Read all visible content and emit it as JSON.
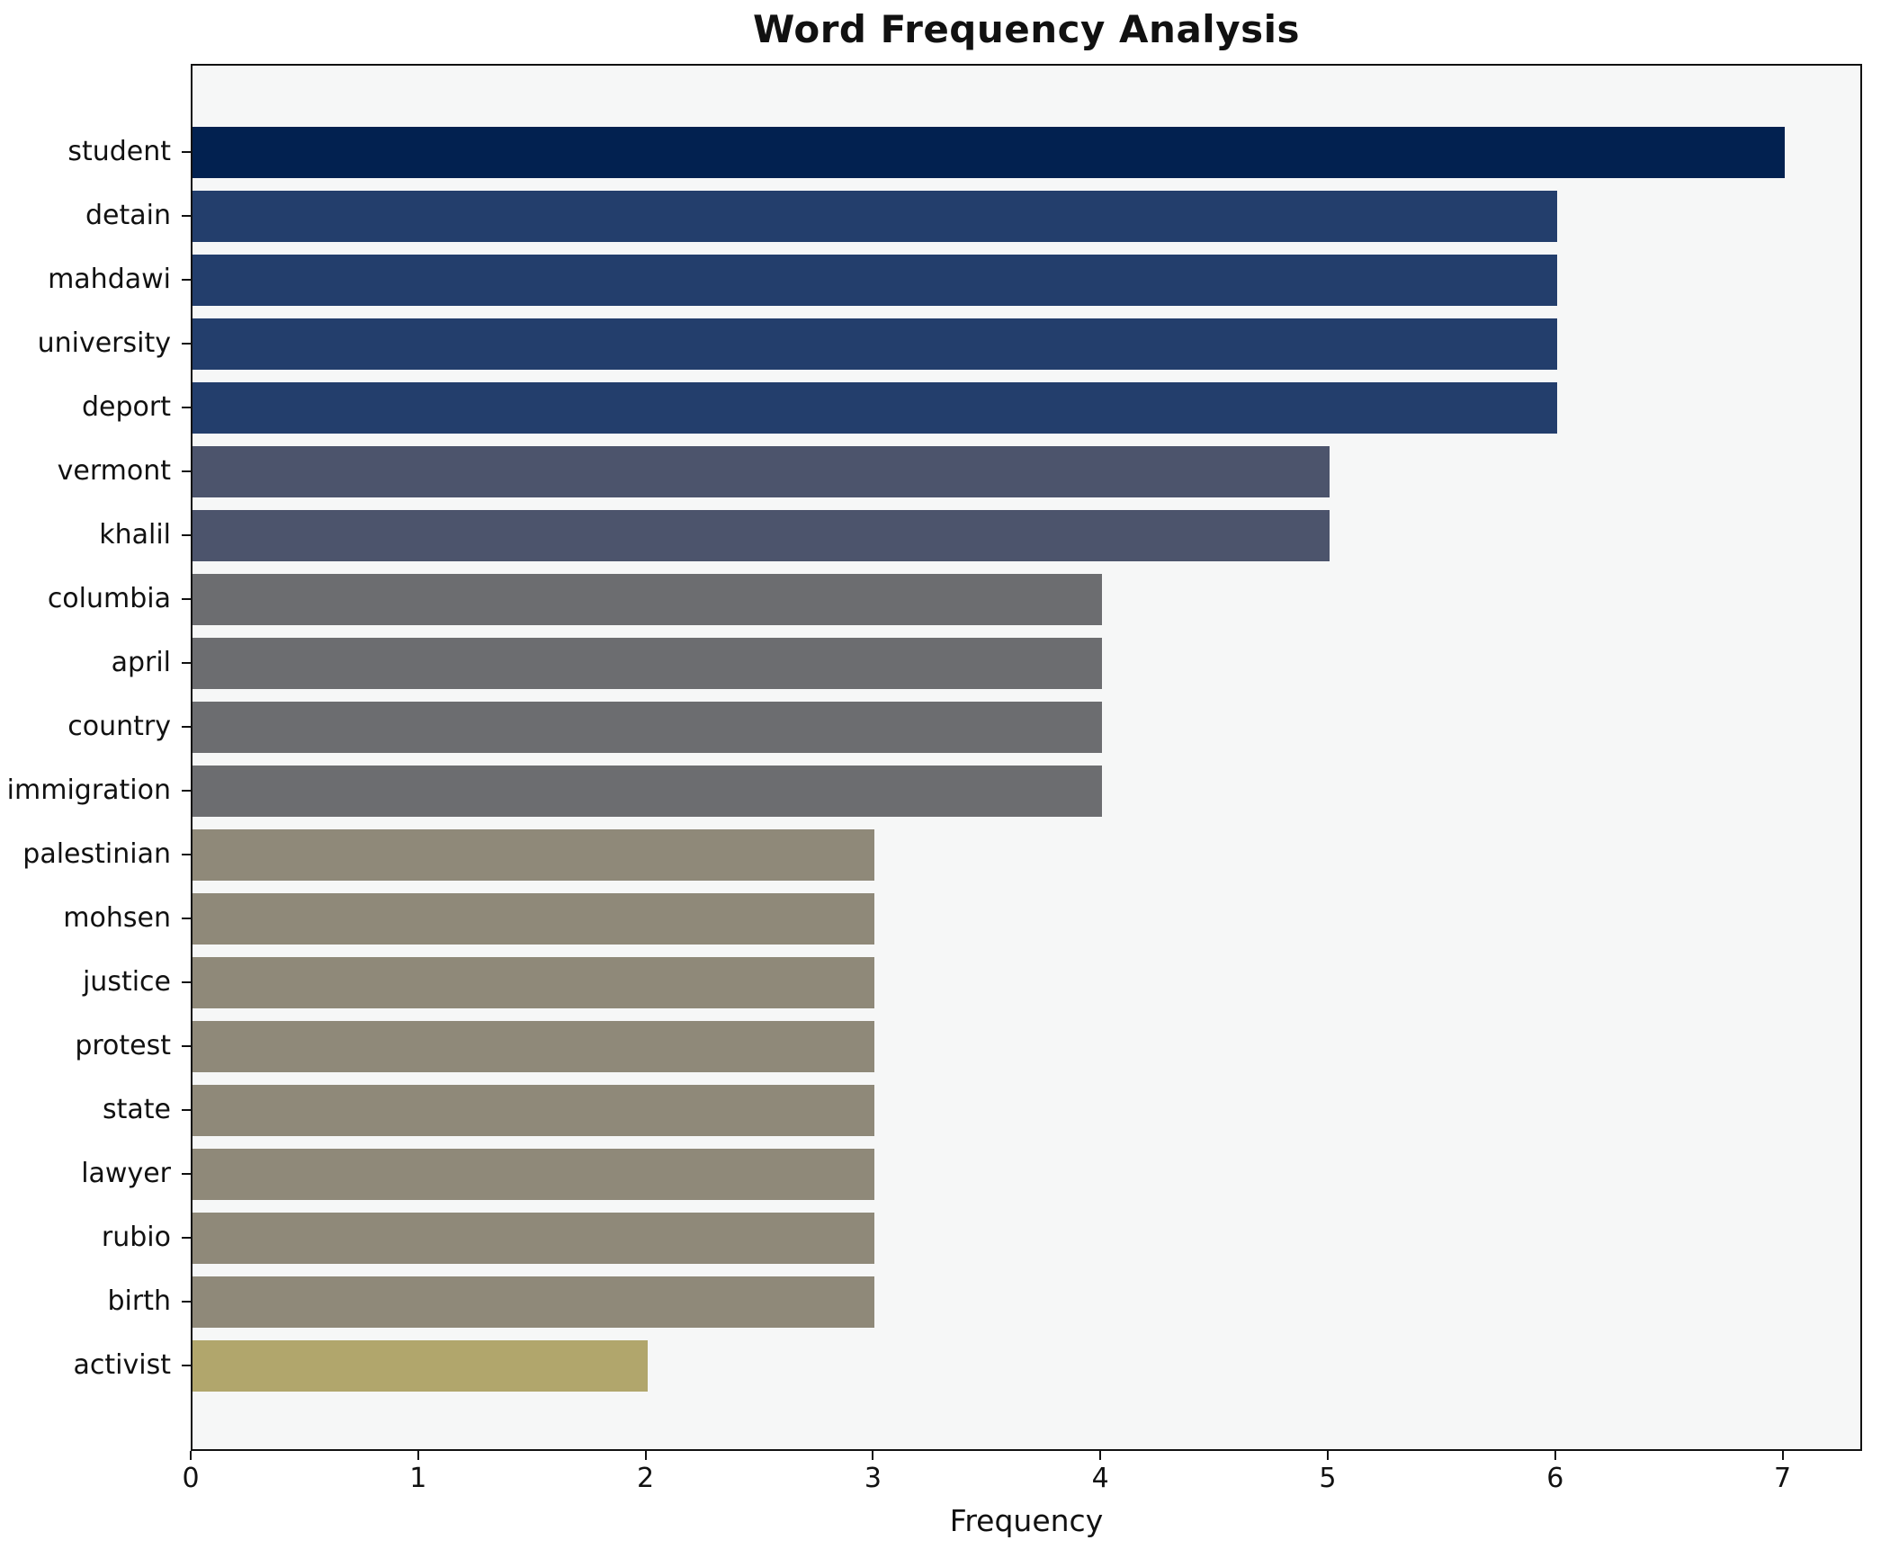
{
  "title": "Word Frequency Analysis",
  "chart_data": {
    "type": "bar",
    "orientation": "horizontal",
    "title": "Word Frequency Analysis",
    "xlabel": "Frequency",
    "ylabel": "",
    "categories": [
      "student",
      "detain",
      "mahdawi",
      "university",
      "deport",
      "vermont",
      "khalil",
      "columbia",
      "april",
      "country",
      "immigration",
      "palestinian",
      "mohsen",
      "justice",
      "protest",
      "state",
      "lawyer",
      "rubio",
      "birth",
      "activist"
    ],
    "values": [
      7,
      6,
      6,
      6,
      6,
      5,
      5,
      4,
      4,
      4,
      4,
      3,
      3,
      3,
      3,
      3,
      3,
      3,
      3,
      2
    ],
    "x_ticks": [
      0,
      1,
      2,
      3,
      4,
      5,
      6,
      7
    ],
    "xlim": [
      0,
      7.35
    ],
    "grid": false,
    "legend": null,
    "colors_by_value": {
      "7": "#022150",
      "6": "#233e6c",
      "5": "#4c546c",
      "4": "#6c6d70",
      "3": "#8f8979",
      "2": "#b1a66c"
    },
    "plot_bg": "#f6f7f7",
    "figure_bg": "#ffffff",
    "spine_color": "#111111"
  }
}
